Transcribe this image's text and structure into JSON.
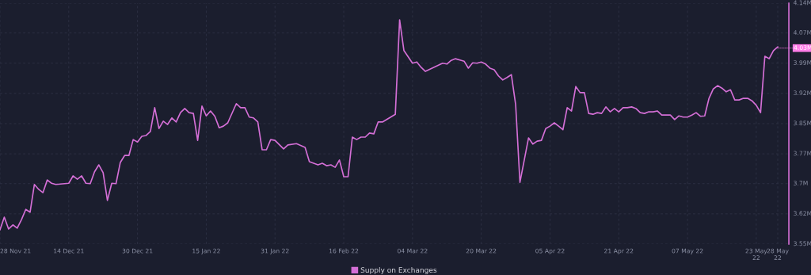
{
  "chart_data": {
    "type": "line",
    "legend": "bottom",
    "grid": true,
    "marker": "none",
    "line_style": "solid",
    "xlim": [
      "2021-11-28",
      "2022-05-30T14:00"
    ],
    "xticks": [
      {
        "value": "2021-11-28",
        "label": "28 Nov 21"
      },
      {
        "value": "2021-12-14",
        "label": "14 Dec 21"
      },
      {
        "value": "2021-12-30",
        "label": "30 Dec 21"
      },
      {
        "value": "2022-01-15",
        "label": "15 Jan 22"
      },
      {
        "value": "2022-01-31",
        "label": "31 Jan 22"
      },
      {
        "value": "2022-02-16",
        "label": "16 Feb 22"
      },
      {
        "value": "2022-03-04",
        "label": "04 Mar 22"
      },
      {
        "value": "2022-03-20",
        "label": "20 Mar 22"
      },
      {
        "value": "2022-04-05",
        "label": "05 Apr 22"
      },
      {
        "value": "2022-04-21",
        "label": "21 Apr 22"
      },
      {
        "value": "2022-05-07",
        "label": "07 May 22"
      },
      {
        "value": "2022-05-23",
        "label": "23 May 22"
      },
      {
        "value": "2022-05-28",
        "label": "28 May 22"
      }
    ],
    "ylim": [
      3.55,
      4.14
    ],
    "yticks": [
      {
        "value": 3.55,
        "label": "3.55M"
      },
      {
        "value": 3.624,
        "label": "3.62M"
      },
      {
        "value": 3.698,
        "label": "3.7M"
      },
      {
        "value": 3.771,
        "label": "3.77M"
      },
      {
        "value": 3.845,
        "label": "3.85M"
      },
      {
        "value": 3.919,
        "label": "3.92M"
      },
      {
        "value": 3.993,
        "label": "3.99M"
      },
      {
        "value": 4.067,
        "label": "4.07M"
      },
      {
        "value": 4.14,
        "label": "4.14M"
      }
    ],
    "annotations": [
      {
        "text": "4.03M",
        "x": "2022-05-28",
        "y": 4.03
      }
    ],
    "series": [
      {
        "name": "Supply on Exchanges",
        "color": "#d46fd6",
        "x": [
          "2021-11-28",
          "2021-11-29",
          "2021-11-30",
          "2021-12-01",
          "2021-12-02",
          "2021-12-03",
          "2021-12-04",
          "2021-12-05",
          "2021-12-06",
          "2021-12-07",
          "2021-12-08",
          "2021-12-09",
          "2021-12-10",
          "2021-12-11",
          "2021-12-14",
          "2021-12-15",
          "2021-12-16",
          "2021-12-17",
          "2021-12-18",
          "2021-12-19",
          "2021-12-20",
          "2021-12-21",
          "2021-12-22",
          "2021-12-23",
          "2021-12-24",
          "2021-12-25",
          "2021-12-26",
          "2021-12-27",
          "2021-12-28",
          "2021-12-29",
          "2021-12-30",
          "2021-12-31",
          "2022-01-01",
          "2022-01-02",
          "2022-01-03",
          "2022-01-04",
          "2022-01-05",
          "2022-01-06",
          "2022-01-07",
          "2022-01-08",
          "2022-01-09",
          "2022-01-10",
          "2022-01-11",
          "2022-01-12",
          "2022-01-13",
          "2022-01-14",
          "2022-01-15",
          "2022-01-16",
          "2022-01-17",
          "2022-01-18",
          "2022-01-19",
          "2022-01-20",
          "2022-01-22",
          "2022-01-23",
          "2022-01-24",
          "2022-01-25",
          "2022-01-26",
          "2022-01-27",
          "2022-01-28",
          "2022-01-29",
          "2022-01-30",
          "2022-01-31",
          "2022-02-02",
          "2022-02-03",
          "2022-02-05",
          "2022-02-07",
          "2022-02-08",
          "2022-02-10",
          "2022-02-11",
          "2022-02-12",
          "2022-02-13",
          "2022-02-14",
          "2022-02-15",
          "2022-02-16",
          "2022-02-17",
          "2022-02-18",
          "2022-02-19",
          "2022-02-20",
          "2022-02-21",
          "2022-02-22",
          "2022-02-23",
          "2022-02-24",
          "2022-02-25",
          "2022-02-28",
          "2022-03-01",
          "2022-03-02",
          "2022-03-04",
          "2022-03-05",
          "2022-03-06",
          "2022-03-07",
          "2022-03-11",
          "2022-03-12",
          "2022-03-13",
          "2022-03-14",
          "2022-03-16",
          "2022-03-17",
          "2022-03-18",
          "2022-03-19",
          "2022-03-20",
          "2022-03-21",
          "2022-03-22",
          "2022-03-23",
          "2022-03-24",
          "2022-03-25",
          "2022-03-26",
          "2022-03-27",
          "2022-03-28",
          "2022-03-29",
          "2022-03-31",
          "2022-04-01",
          "2022-04-02",
          "2022-04-03",
          "2022-04-04",
          "2022-04-05",
          "2022-04-06",
          "2022-04-07",
          "2022-04-08",
          "2022-04-09",
          "2022-04-10",
          "2022-04-11",
          "2022-04-12",
          "2022-04-13",
          "2022-04-14",
          "2022-04-15",
          "2022-04-16",
          "2022-04-17",
          "2022-04-18",
          "2022-04-19",
          "2022-04-20",
          "2022-04-21",
          "2022-04-22",
          "2022-04-23",
          "2022-04-24",
          "2022-04-25",
          "2022-04-26",
          "2022-04-27",
          "2022-04-28",
          "2022-04-29",
          "2022-04-30",
          "2022-05-01",
          "2022-05-03",
          "2022-05-04",
          "2022-05-05",
          "2022-05-06",
          "2022-05-07",
          "2022-05-08",
          "2022-05-09",
          "2022-05-10",
          "2022-05-11",
          "2022-05-12",
          "2022-05-13",
          "2022-05-14",
          "2022-05-15",
          "2022-05-16",
          "2022-05-17",
          "2022-05-18",
          "2022-05-19",
          "2022-05-20",
          "2022-05-21",
          "2022-05-22",
          "2022-05-23",
          "2022-05-24",
          "2022-05-25",
          "2022-05-26",
          "2022-05-27",
          "2022-05-28"
        ],
        "values": [
          3.585,
          3.616,
          3.587,
          3.597,
          3.589,
          3.61,
          3.635,
          3.628,
          3.696,
          3.684,
          3.676,
          3.707,
          3.699,
          3.696,
          3.699,
          3.717,
          3.709,
          3.717,
          3.699,
          3.698,
          3.727,
          3.744,
          3.725,
          3.657,
          3.699,
          3.698,
          3.75,
          3.767,
          3.767,
          3.806,
          3.8,
          3.814,
          3.816,
          3.826,
          3.884,
          3.833,
          3.851,
          3.843,
          3.859,
          3.849,
          3.872,
          3.882,
          3.872,
          3.87,
          3.804,
          3.888,
          3.864,
          3.876,
          3.863,
          3.835,
          3.839,
          3.847,
          3.894,
          3.884,
          3.884,
          3.861,
          3.859,
          3.849,
          3.781,
          3.781,
          3.806,
          3.804,
          3.783,
          3.793,
          3.796,
          3.787,
          3.752,
          3.744,
          3.748,
          3.742,
          3.744,
          3.738,
          3.756,
          3.715,
          3.715,
          3.812,
          3.806,
          3.812,
          3.812,
          3.822,
          3.82,
          3.849,
          3.849,
          3.868,
          4.099,
          4.024,
          3.993,
          3.996,
          3.983,
          3.973,
          3.993,
          3.991,
          4.0,
          4.004,
          3.998,
          3.981,
          3.994,
          3.993,
          3.996,
          3.991,
          3.981,
          3.977,
          3.962,
          3.952,
          3.958,
          3.965,
          3.892,
          3.701,
          3.81,
          3.795,
          3.802,
          3.804,
          3.833,
          3.839,
          3.847,
          3.839,
          3.83,
          3.884,
          3.876,
          3.936,
          3.921,
          3.921,
          3.87,
          3.868,
          3.872,
          3.87,
          3.886,
          3.874,
          3.882,
          3.874,
          3.884,
          3.884,
          3.886,
          3.882,
          3.872,
          3.87,
          3.874,
          3.874,
          3.876,
          3.866,
          3.866,
          3.855,
          3.864,
          3.861,
          3.861,
          3.866,
          3.872,
          3.863,
          3.864,
          3.907,
          3.93,
          3.938,
          3.932,
          3.923,
          3.928,
          3.903,
          3.903,
          3.907,
          3.907,
          3.901,
          3.89,
          3.872,
          4.01,
          4.004,
          4.024,
          4.033
        ]
      }
    ]
  }
}
